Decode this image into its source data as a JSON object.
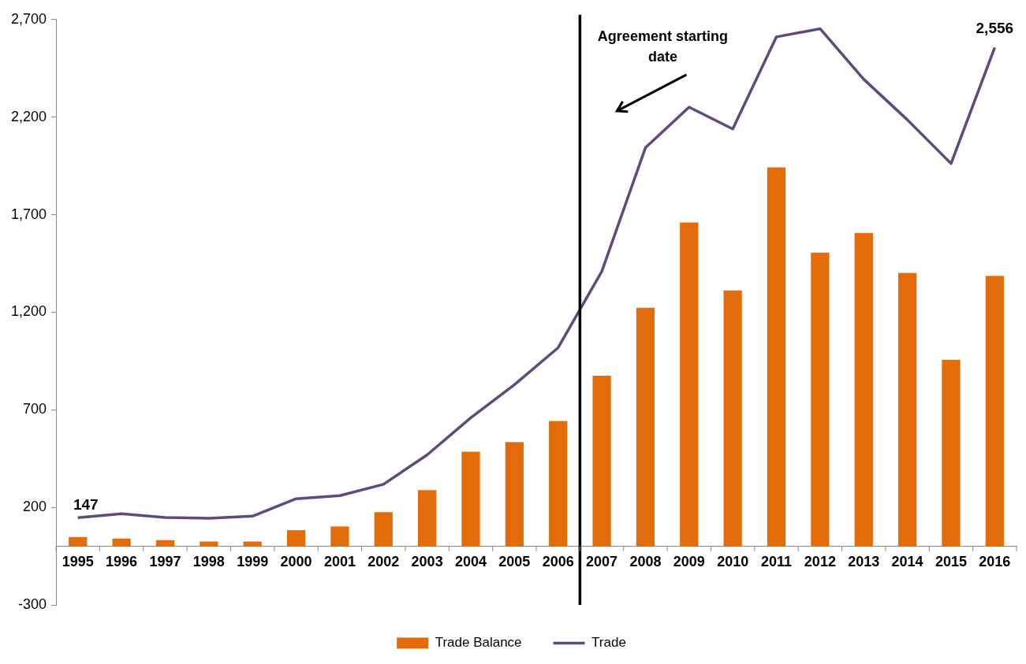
{
  "chart_data": {
    "type": "bar",
    "x": [
      1995,
      1996,
      1997,
      1998,
      1999,
      2000,
      2001,
      2002,
      2003,
      2004,
      2005,
      2006,
      2007,
      2008,
      2009,
      2010,
      2011,
      2012,
      2013,
      2014,
      2015,
      2016
    ],
    "xlim": [
      1994.5,
      2016.5
    ],
    "xticks": [
      1995,
      1996,
      1997,
      1998,
      1999,
      2000,
      2001,
      2002,
      2003,
      2004,
      2005,
      2006,
      2007,
      2008,
      2009,
      2010,
      2011,
      2012,
      2013,
      2014,
      2015,
      2016
    ],
    "ylim": [
      -300,
      2700
    ],
    "yticks": [
      -300,
      200,
      700,
      {
        "value": 1200,
        "label": "1,200"
      },
      {
        "value": 1700,
        "label": "1,700"
      },
      {
        "value": 2200,
        "label": "2,200"
      },
      {
        "value": 2700,
        "label": "2,700"
      }
    ],
    "series": [
      {
        "name": "Trade Balance",
        "color": "#e36c0a",
        "values": [
          48,
          40,
          32,
          25,
          25,
          83,
          102,
          175,
          288,
          485,
          535,
          643,
          875,
          1223,
          1660,
          1312,
          1942,
          1505,
          1606,
          1401,
          956,
          1386
        ]
      },
      {
        "name": "Trade",
        "type": "line",
        "color": "#604a7b",
        "values": [
          147,
          167,
          148,
          144,
          155,
          244,
          260,
          318,
          469,
          659,
          829,
          1018,
          1409,
          2043,
          2251,
          2139,
          2611,
          2653,
          2394,
          2186,
          1962,
          2556
        ],
        "value_labels": [
          "147",
          null,
          null,
          null,
          null,
          null,
          null,
          null,
          null,
          null,
          null,
          null,
          null,
          null,
          null,
          null,
          null,
          null,
          null,
          null,
          null,
          "2,556"
        ]
      }
    ],
    "ref_lines": [
      {
        "axis": "x",
        "value": 2006.5,
        "label": "Agreement starting date",
        "color": "#000000"
      }
    ],
    "grid": false,
    "legend": "bottom",
    "marker": "none"
  }
}
